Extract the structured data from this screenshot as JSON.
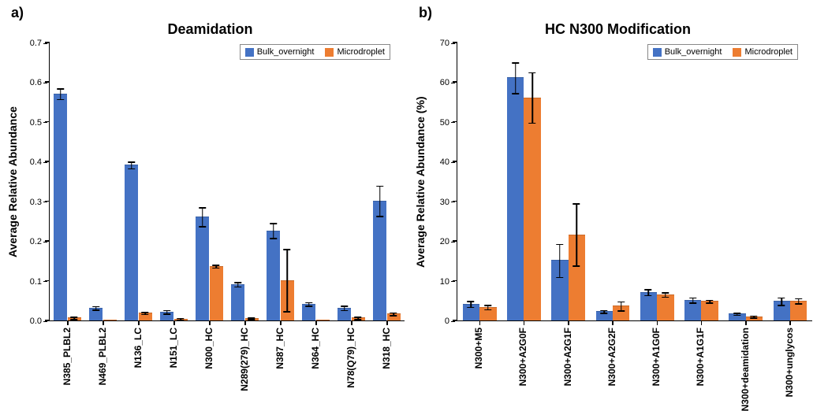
{
  "series_colors": {
    "bulk": "#4472c4",
    "micro": "#ed7d31"
  },
  "series_labels": {
    "bulk": "Bulk_overnight",
    "micro": "Microdroplet"
  },
  "panel_a": {
    "label": "a)",
    "title": "Deamidation",
    "ylabel": "Average Relative Abundance",
    "ymin": 0,
    "ymax": 0.7,
    "ytick_step": 0.1,
    "categories": [
      "N385_PLBL2",
      "N469_PLBL2",
      "N136_LC",
      "N151_LC",
      "N300_HC",
      "N289(279)_HC",
      "N387_HC",
      "N364_HC",
      "N78(Q79)_HC",
      "N318_HC"
    ],
    "bulk": [
      0.57,
      0.03,
      0.39,
      0.02,
      0.26,
      0.09,
      0.225,
      0.04,
      0.03,
      0.3
    ],
    "micro": [
      0.005,
      0.0,
      0.017,
      0.003,
      0.135,
      0.004,
      0.1,
      0.0,
      0.005,
      0.015
    ],
    "bulk_err": [
      0.015,
      0.006,
      0.01,
      0.006,
      0.025,
      0.007,
      0.02,
      0.006,
      0.007,
      0.04
    ],
    "micro_err": [
      0.004,
      0.0,
      0.004,
      0.003,
      0.005,
      0.003,
      0.08,
      0.0,
      0.004,
      0.005
    ],
    "tick_decimals": 1,
    "bar_width": 0.38
  },
  "panel_b": {
    "label": "b)",
    "title": "HC N300 Modification",
    "ylabel": "Average Relative Abundance (%)",
    "ymin": 0,
    "ymax": 70,
    "ytick_step": 10,
    "categories": [
      "N300+M5",
      "N300+A2G0F",
      "N300+A2G1F",
      "N300+A2G2F",
      "N300+A1G0F",
      "N300+A1G1F",
      "N300+deamidation",
      "N300+unglycos"
    ],
    "bulk": [
      4.0,
      61.0,
      15.0,
      2.1,
      7.0,
      5.0,
      1.5,
      4.7
    ],
    "micro": [
      3.2,
      56.0,
      21.5,
      3.5,
      6.4,
      4.7,
      0.8,
      4.8
    ],
    "bulk_err": [
      0.9,
      4.0,
      4.3,
      0.5,
      0.9,
      0.8,
      0.4,
      1.1
    ],
    "micro_err": [
      0.7,
      6.5,
      8.0,
      1.3,
      0.7,
      0.5,
      0.4,
      0.8
    ],
    "tick_decimals": 0,
    "bar_width": 0.38
  },
  "axis_fontsize": 11,
  "label_fontsize": 12
}
